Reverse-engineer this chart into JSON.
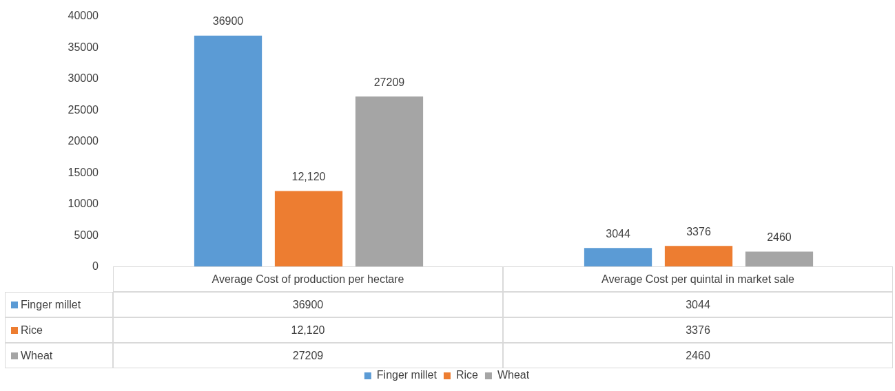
{
  "chart_data": {
    "type": "bar",
    "categories": [
      "Average Cost of production per hectare",
      "Average Cost per quintal in market sale"
    ],
    "series": [
      {
        "name": "Finger millet",
        "color": "#5b9bd5",
        "values": [
          36900,
          3044
        ],
        "value_labels": [
          "36900",
          "3044"
        ]
      },
      {
        "name": "Rice",
        "color": "#ed7d31",
        "values": [
          12120,
          3376
        ],
        "value_labels": [
          "12,120",
          "3376"
        ]
      },
      {
        "name": "Wheat",
        "color": "#a5a5a5",
        "values": [
          27209,
          2460
        ],
        "value_labels": [
          "27209",
          "2460"
        ]
      }
    ],
    "ylim": [
      0,
      40000
    ],
    "yticks": [
      0,
      5000,
      10000,
      15000,
      20000,
      25000,
      30000,
      35000,
      40000
    ],
    "grid": false,
    "legend": "bottom"
  }
}
